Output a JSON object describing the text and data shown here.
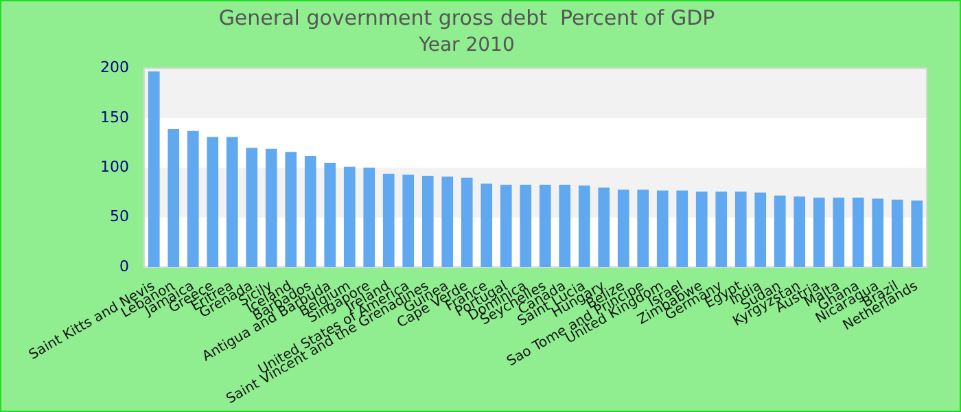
{
  "chart_data": {
    "type": "bar",
    "title": "General government gross debt  Percent of GDP",
    "subtitle": "Year 2010",
    "categories": [
      "Saint Kitts and Nevis",
      "Lebanon",
      "Jamaica",
      "Greece",
      "Eritrea",
      "Grenada",
      "Sicily",
      "Iceland",
      "Barbados",
      "Antigua and Barbuda",
      "Belgium",
      "Singapore",
      "Ireland",
      "United States of America",
      "Saint Vincent and the Grenadines",
      "Guinea",
      "Cape Verde",
      "France",
      "Portugal",
      "Dominica",
      "Seychelles",
      "Canada",
      "Saint Lucia",
      "Hungary",
      "Belize",
      "Sao Tome and Principe",
      "United Kingdom",
      "Israel",
      "Zimbabwe",
      "Germany",
      "Egypt",
      "India",
      "Sudan",
      "Kyrgyzstan",
      "Austria",
      "Malta",
      "Ghana",
      "Nicaragua",
      "Brazil",
      "Netherlands"
    ],
    "values": [
      197,
      139,
      137,
      131,
      131,
      120,
      119,
      116,
      112,
      105,
      101,
      100,
      94,
      93,
      92,
      91,
      90,
      84,
      83,
      83,
      83,
      83,
      82,
      80,
      78,
      78,
      77,
      77,
      76,
      76,
      76,
      75,
      72,
      71,
      70,
      70,
      70,
      69,
      68,
      67
    ],
    "color": "#60a8f0",
    "ylim": [
      0,
      200
    ],
    "yticks": [
      0,
      50,
      100,
      150,
      200
    ]
  }
}
